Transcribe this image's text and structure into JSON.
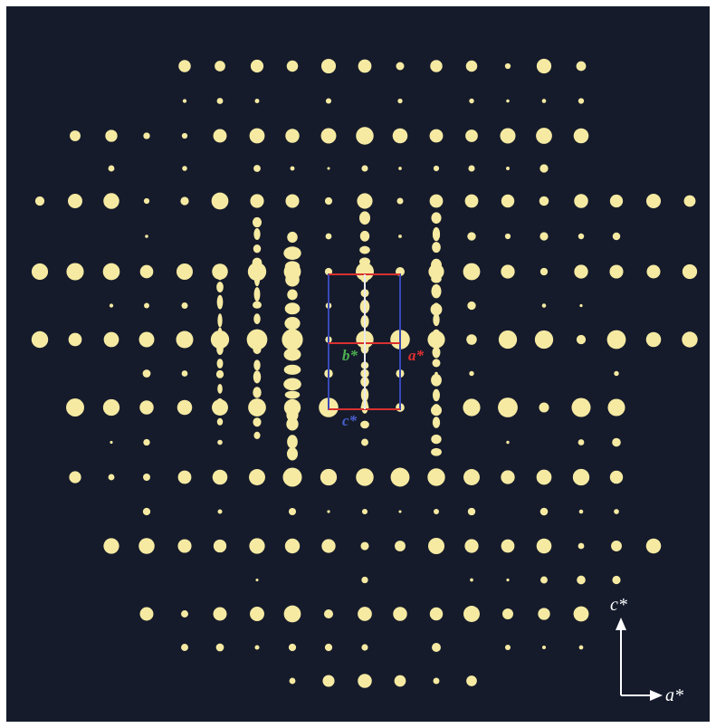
{
  "figure": {
    "cell_labels": {
      "b": "b*",
      "a": "a*",
      "c": "c*"
    },
    "axes": {
      "vertical": "c*",
      "horizontal": "a*"
    }
  }
}
